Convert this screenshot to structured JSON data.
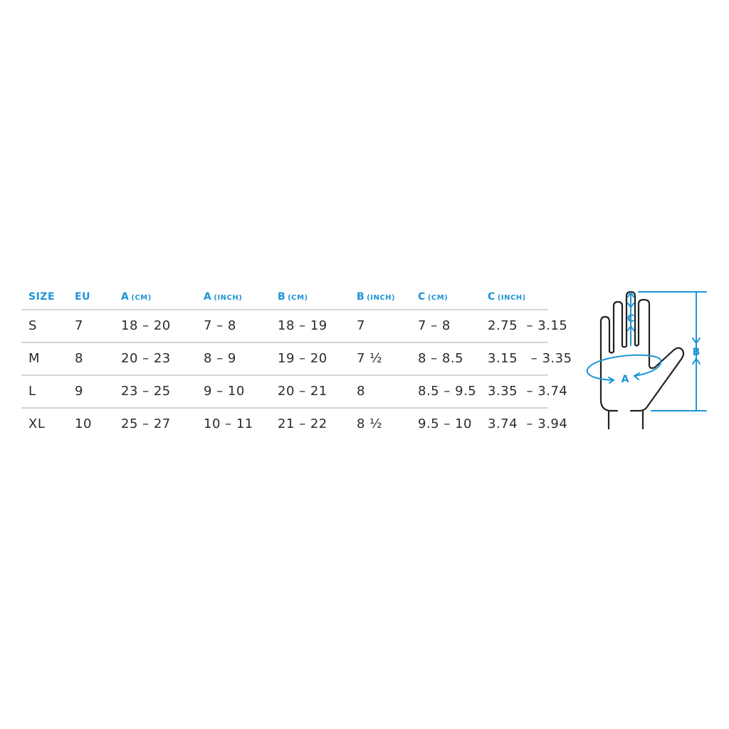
{
  "table": {
    "headers": [
      {
        "label": "SIZE",
        "unit": ""
      },
      {
        "label": "EU",
        "unit": ""
      },
      {
        "label": "A",
        "unit": "(CM)"
      },
      {
        "label": "A",
        "unit": "(INCH)"
      },
      {
        "label": "B",
        "unit": "(CM)"
      },
      {
        "label": "B",
        "unit": "(INCH)"
      },
      {
        "label": "C",
        "unit": "(CM)"
      },
      {
        "label": "C",
        "unit": "(INCH)"
      }
    ],
    "rows": [
      [
        "S",
        "7",
        "18 – 20",
        "7 – 8",
        "18 – 19",
        "7",
        "7 – 8",
        "2.75  – 3.15"
      ],
      [
        "M",
        "8",
        "20 – 23",
        "8 – 9",
        "19 – 20",
        "7 ½",
        "8 – 8.5",
        "3.15   – 3.35"
      ],
      [
        "L",
        "9",
        "23 – 25",
        "9 – 10",
        "20 – 21",
        "8",
        "8.5 – 9.5",
        "3.35  – 3.74"
      ],
      [
        "XL",
        "10",
        "25 – 27",
        "10 – 11",
        "21 – 22",
        "8 ½",
        "9.5 – 10",
        "3.74  – 3.94"
      ]
    ]
  },
  "diagram": {
    "labels": {
      "a": "A",
      "b": "B",
      "c": "C"
    },
    "accent_color": "#1d94d6",
    "outline_color": "#222222",
    "icon": "hand-measurement-diagram"
  }
}
